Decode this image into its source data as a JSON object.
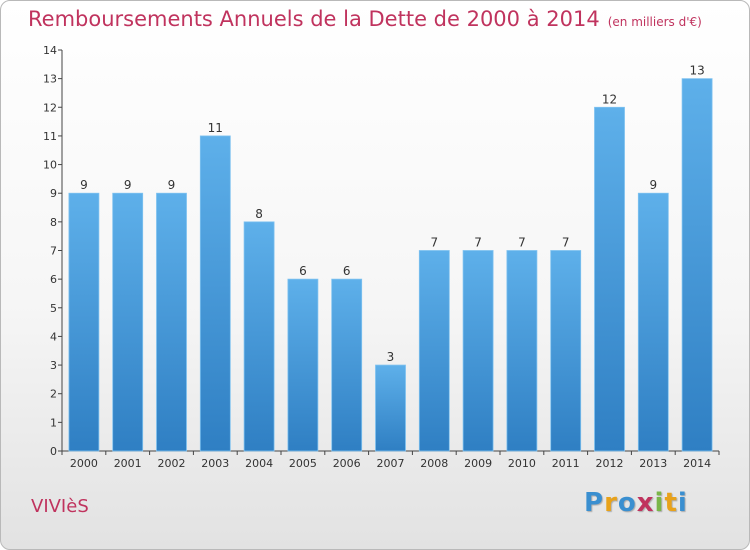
{
  "header": {
    "title": "Remboursements Annuels de la Dette de 2000 à 2014",
    "unit": "(en milliers d'€)"
  },
  "footer": {
    "commune": "VIVIèS",
    "logo": [
      "P",
      "r",
      "o",
      "x",
      "i",
      "t",
      "i"
    ],
    "logo_colors": [
      "#3a8fd0",
      "#e8a21a",
      "#3a8fd0",
      "#c0335e",
      "#7ab648",
      "#e8a21a",
      "#3a8fd0"
    ]
  },
  "chart_data": {
    "type": "bar",
    "title": "Remboursements Annuels de la Dette de 2000 à 2014",
    "categories": [
      "2000",
      "2001",
      "2002",
      "2003",
      "2004",
      "2005",
      "2006",
      "2007",
      "2008",
      "2009",
      "2010",
      "2011",
      "2012",
      "2013",
      "2014"
    ],
    "values": [
      9,
      9,
      9,
      11,
      8,
      6,
      6,
      3,
      7,
      7,
      7,
      7,
      12,
      9,
      13
    ],
    "ylim": [
      0,
      14
    ],
    "yticks": [
      0,
      1,
      2,
      3,
      4,
      5,
      6,
      7,
      8,
      9,
      10,
      11,
      12,
      13,
      14
    ],
    "grid": false,
    "bar_color_top": "#5eb0ea",
    "bar_color_bottom": "#2f7fc3"
  }
}
